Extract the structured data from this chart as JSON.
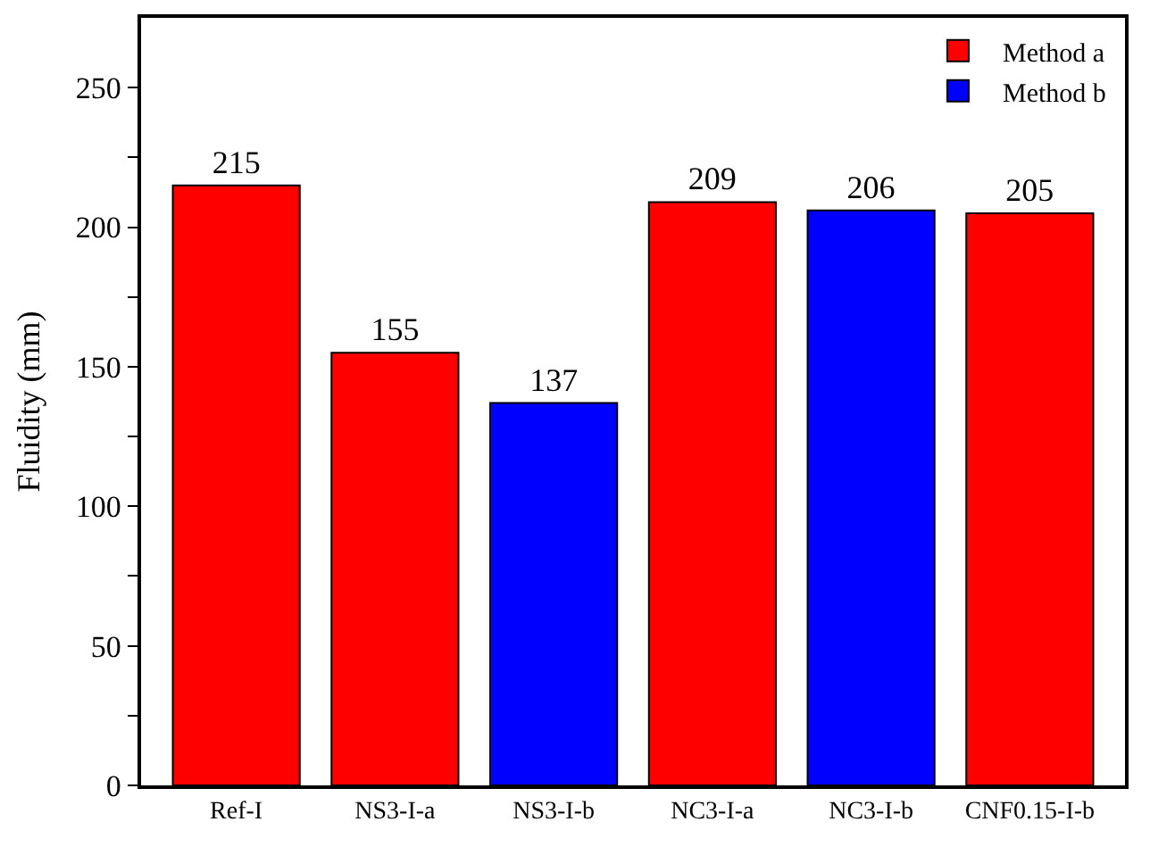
{
  "chart_data": {
    "type": "bar",
    "ylabel": "Fluidity (mm)",
    "categories": [
      "Ref-I",
      "NS3-I-a",
      "NS3-I-b",
      "NC3-I-a",
      "NC3-I-b",
      "CNF0.15-I-b"
    ],
    "series": [
      {
        "name": "Method a",
        "color": "#ff0000",
        "values": [
          215,
          155,
          null,
          209,
          null,
          205
        ]
      },
      {
        "name": "Method b",
        "color": "#0000ff",
        "values": [
          null,
          null,
          137,
          null,
          206,
          null
        ]
      }
    ],
    "ylim": [
      0,
      275
    ],
    "yticks": [
      0,
      {
        "value": 25,
        "label": null
      },
      50,
      {
        "value": 75,
        "label": null
      },
      100,
      {
        "value": 125,
        "label": null
      },
      150,
      {
        "value": 175,
        "label": null
      },
      200,
      {
        "value": 225,
        "label": null
      },
      250
    ],
    "data_labels": true,
    "legend": "top right"
  }
}
